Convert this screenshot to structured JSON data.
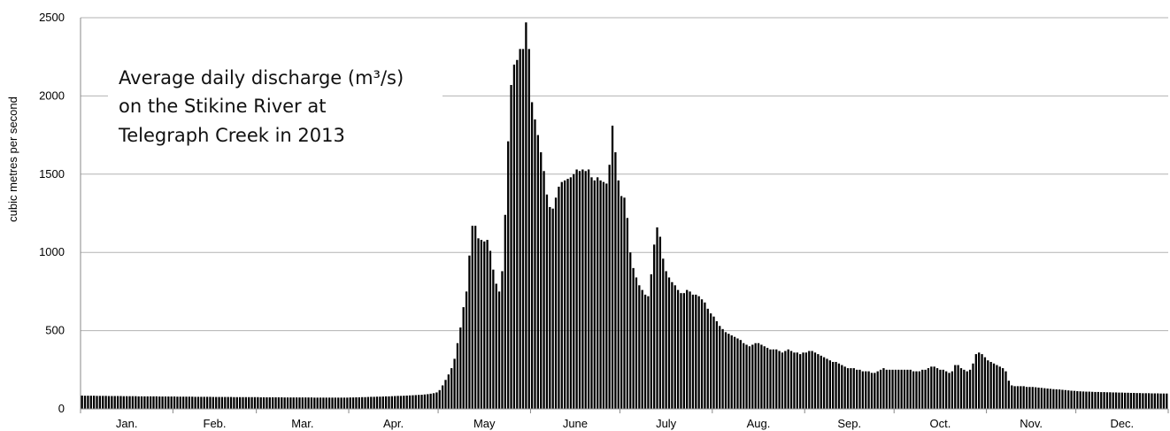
{
  "chart_data": {
    "type": "bar",
    "title_lines": [
      "Average daily discharge (m³/s)",
      "on the Stikine River at",
      "Telegraph Creek in 2013"
    ],
    "xlabel": "",
    "ylabel": "cubic metres per second",
    "ylim": [
      0,
      2500
    ],
    "yticks": [
      0,
      500,
      1000,
      1500,
      2000,
      2500
    ],
    "grid": "horizontal",
    "month_labels": [
      "Jan.",
      "Feb.",
      "Mar.",
      "Apr.",
      "May",
      "June",
      "July",
      "Aug.",
      "Sep.",
      "Oct.",
      "Nov.",
      "Dec."
    ],
    "month_days": [
      31,
      28,
      31,
      30,
      31,
      30,
      31,
      31,
      30,
      31,
      30,
      31
    ],
    "bar_color": "#000000",
    "values": [
      85,
      84,
      84,
      84,
      84,
      83,
      83,
      83,
      83,
      82,
      82,
      82,
      82,
      82,
      81,
      81,
      81,
      81,
      81,
      80,
      80,
      80,
      80,
      80,
      80,
      80,
      79,
      79,
      79,
      79,
      79,
      79,
      78,
      78,
      78,
      78,
      78,
      78,
      77,
      77,
      77,
      77,
      77,
      77,
      76,
      76,
      76,
      76,
      76,
      76,
      76,
      75,
      75,
      75,
      75,
      75,
      75,
      75,
      75,
      75,
      74,
      74,
      74,
      74,
      74,
      74,
      74,
      74,
      73,
      73,
      73,
      73,
      73,
      73,
      73,
      73,
      73,
      73,
      72,
      72,
      72,
      72,
      72,
      72,
      72,
      72,
      72,
      72,
      72,
      72,
      73,
      73,
      74,
      74,
      75,
      75,
      76,
      77,
      77,
      78,
      78,
      79,
      80,
      80,
      81,
      82,
      83,
      83,
      84,
      85,
      86,
      87,
      88,
      89,
      90,
      92,
      94,
      97,
      100,
      105,
      120,
      150,
      185,
      220,
      260,
      320,
      420,
      520,
      650,
      750,
      980,
      1170,
      1170,
      1090,
      1080,
      1070,
      1080,
      1010,
      890,
      800,
      750,
      880,
      1240,
      1710,
      2070,
      2200,
      2230,
      2300,
      2300,
      2470,
      2300,
      1960,
      1850,
      1750,
      1640,
      1520,
      1370,
      1290,
      1280,
      1350,
      1420,
      1450,
      1460,
      1470,
      1480,
      1500,
      1530,
      1520,
      1530,
      1520,
      1530,
      1480,
      1460,
      1480,
      1460,
      1450,
      1440,
      1560,
      1810,
      1640,
      1460,
      1360,
      1350,
      1220,
      1000,
      900,
      840,
      790,
      760,
      730,
      720,
      860,
      1050,
      1160,
      1100,
      960,
      880,
      840,
      810,
      790,
      760,
      740,
      740,
      760,
      750,
      730,
      730,
      720,
      700,
      680,
      640,
      610,
      590,
      560,
      530,
      510,
      490,
      480,
      470,
      460,
      450,
      440,
      420,
      410,
      400,
      410,
      420,
      420,
      410,
      400,
      390,
      380,
      380,
      380,
      370,
      360,
      370,
      380,
      370,
      360,
      360,
      350,
      360,
      360,
      370,
      370,
      360,
      350,
      340,
      330,
      320,
      310,
      300,
      300,
      290,
      280,
      270,
      260,
      260,
      260,
      250,
      250,
      240,
      240,
      240,
      230,
      230,
      240,
      250,
      260,
      250,
      250,
      250,
      250,
      250,
      250,
      250,
      250,
      250,
      240,
      240,
      240,
      250,
      250,
      260,
      270,
      270,
      260,
      250,
      250,
      240,
      230,
      240,
      280,
      280,
      260,
      250,
      240,
      250,
      290,
      350,
      360,
      350,
      330,
      310,
      300,
      290,
      280,
      270,
      260,
      240,
      180,
      150,
      145,
      145,
      145,
      145,
      140,
      140,
      140,
      138,
      136,
      134,
      132,
      130,
      128,
      126,
      125,
      124,
      122,
      120,
      118,
      116,
      115,
      113,
      112,
      111,
      110,
      110,
      109,
      108,
      108,
      107,
      107,
      106,
      106,
      105,
      105,
      104,
      104,
      103,
      103,
      102,
      102,
      101,
      101,
      100,
      100,
      100,
      99,
      99,
      99,
      98,
      98,
      98
    ]
  }
}
